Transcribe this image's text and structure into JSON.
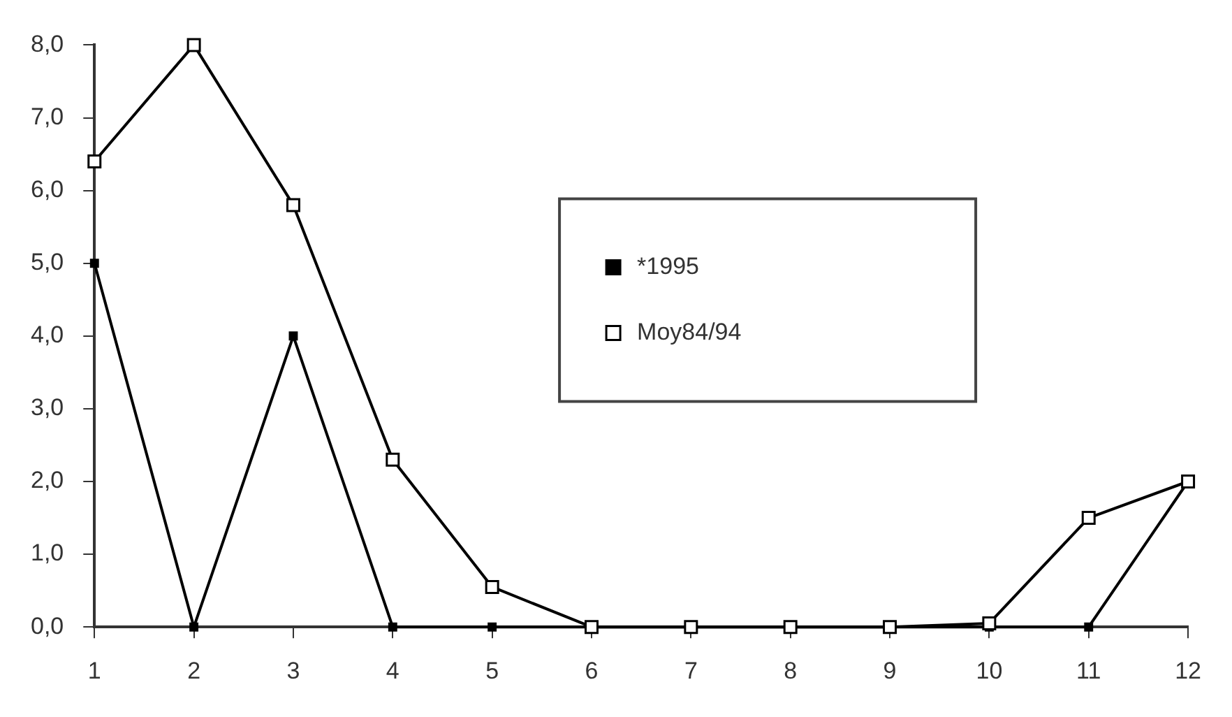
{
  "chart_data": {
    "type": "line",
    "x": [
      1,
      2,
      3,
      4,
      5,
      6,
      7,
      8,
      9,
      10,
      11,
      12
    ],
    "series": [
      {
        "name": "*1995",
        "color": "#000000",
        "values": [
          5.0,
          0,
          4.0,
          0,
          0,
          0,
          0,
          0,
          0,
          0,
          0,
          2.0
        ]
      },
      {
        "name": "Moy84/94",
        "color": "#000000",
        "values": [
          6.4,
          8.0,
          5.8,
          2.3,
          0.55,
          0,
          0,
          0,
          0,
          0.05,
          1.5,
          2.0
        ]
      }
    ],
    "xlim": [
      1,
      12
    ],
    "xticks": [
      1,
      2,
      3,
      4,
      5,
      6,
      7,
      8,
      9,
      10,
      11,
      12
    ],
    "ylim": [
      0,
      8
    ],
    "yticks": [
      {
        "value": 0,
        "label": "0,0"
      },
      {
        "value": 1,
        "label": "1,0"
      },
      {
        "value": 2,
        "label": "2,0"
      },
      {
        "value": 3,
        "label": "3,0"
      },
      {
        "value": 4,
        "label": "4,0"
      },
      {
        "value": 5,
        "label": "5,0"
      },
      {
        "value": 6,
        "label": "6,0"
      },
      {
        "value": 7,
        "label": "7,0"
      },
      {
        "value": 8,
        "label": "8,0"
      }
    ],
    "grid": false,
    "legend": "top right",
    "marker": "square",
    "line_style": "solid"
  }
}
